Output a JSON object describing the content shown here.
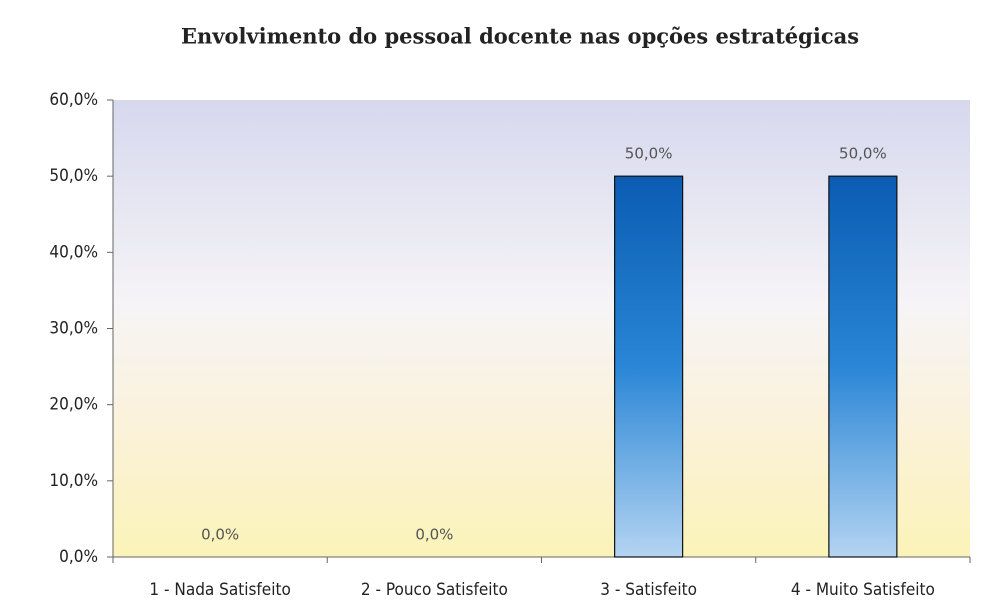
{
  "chart_data": {
    "type": "bar",
    "title": "Envolvimento do pessoal docente nas opções estratégicas",
    "categories": [
      "1 - Nada Satisfeito",
      "2 - Pouco Satisfeito",
      "3 - Satisfeito",
      "4 - Muito Satisfeito"
    ],
    "values": [
      0,
      0,
      50,
      50
    ],
    "value_labels": [
      "0,0%",
      "0,0%",
      "50,0%",
      "50,0%"
    ],
    "color": "#1a6cc0",
    "ylim": [
      0,
      60
    ],
    "yticks": [
      {
        "value": 0,
        "label": "0,0%"
      },
      {
        "value": 10,
        "label": "10,0%"
      },
      {
        "value": 20,
        "label": "20,0%"
      },
      {
        "value": 30,
        "label": "30,0%"
      },
      {
        "value": 40,
        "label": "40,0%"
      },
      {
        "value": 50,
        "label": "50,0%"
      },
      {
        "value": 60,
        "label": "60,0%"
      }
    ]
  }
}
